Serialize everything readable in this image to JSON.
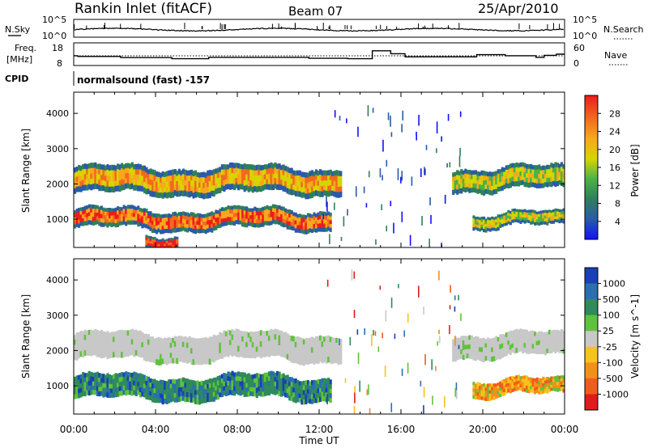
{
  "header": {
    "station": "Rankin Inlet (fitACF)",
    "beam": "Beam 07",
    "date": "25/Apr/2010"
  },
  "noise_panel": {
    "left_label": "N.Sky",
    "right_label": "N.Search",
    "left_ticks": [
      "10^5",
      "10^0"
    ],
    "right_ticks": [
      "10^5",
      "10^0"
    ]
  },
  "freq_panel": {
    "left_label": "Freq.",
    "left_unit": "[MHz]",
    "right_label": "Nave",
    "left_ticks": [
      "18",
      "8"
    ],
    "right_ticks": [
      "60",
      "0"
    ],
    "freq_steps": [
      {
        "t": 0.0,
        "f": 12.3
      },
      {
        "t": 0.2,
        "f": 12.0
      },
      {
        "t": 2.3,
        "f": 11.5
      },
      {
        "t": 4.8,
        "f": 11.0
      },
      {
        "t": 6.6,
        "f": 11.6
      },
      {
        "t": 9.4,
        "f": 11.6
      },
      {
        "t": 11.5,
        "f": 11.2
      },
      {
        "t": 13.4,
        "f": 11.0
      },
      {
        "t": 14.6,
        "f": 14.5
      },
      {
        "t": 15.5,
        "f": 13.2
      },
      {
        "t": 16.2,
        "f": 11.8
      },
      {
        "t": 19.7,
        "f": 12.8
      },
      {
        "t": 21.1,
        "f": 12.3
      },
      {
        "t": 22.6,
        "f": 11.6
      },
      {
        "t": 23.0,
        "f": 12.5
      },
      {
        "t": 23.6,
        "f": 13.0
      },
      {
        "t": 24.0,
        "f": 13.0
      }
    ]
  },
  "cpid": {
    "label": "CPID",
    "value": "normalsound (fast) -157"
  },
  "chart_data": [
    {
      "type": "heatmap",
      "name": "",
      "xlabel": "Time UT",
      "ylabel": "Slant Range [km]",
      "xlim": [
        0,
        24
      ],
      "ylim": [
        200,
        4600
      ],
      "x_ticks": [
        "00:00",
        "04:00",
        "08:00",
        "12:00",
        "16:00",
        "20:00",
        "00:00"
      ],
      "y_ticks": [
        1000,
        2000,
        3000,
        4000
      ],
      "colorbar": {
        "label": "Power [dB]",
        "ticks": [
          "4",
          "8",
          "12",
          "16",
          "20",
          "24",
          "28"
        ],
        "colors": [
          "#1010ff",
          "#2a5aa8",
          "#2f7f5c",
          "#4bb347",
          "#d7d400",
          "#f7a81b",
          "#f26b1d",
          "#ee1c1c"
        ]
      },
      "bands": [
        {
          "range_km": [
            1700,
            2500
          ],
          "t": [
            0.0,
            13.0
          ],
          "level": 5
        },
        {
          "range_km": [
            700,
            1300
          ],
          "t": [
            0.0,
            12.5
          ],
          "level": 6
        },
        {
          "range_km": [
            1800,
            2500
          ],
          "t": [
            18.5,
            24.0
          ],
          "level": 4
        },
        {
          "range_km": [
            750,
            1200
          ],
          "t": [
            19.5,
            24.0
          ],
          "level": 4
        },
        {
          "range_km": [
            200,
            600
          ],
          "t": [
            3.5,
            5.0
          ],
          "level": 7
        }
      ]
    },
    {
      "type": "heatmap",
      "name": "",
      "xlabel": "Time UT",
      "ylabel": "Slant Range [km]",
      "xlim": [
        0,
        24
      ],
      "ylim": [
        200,
        4600
      ],
      "x_ticks": [
        "00:00",
        "04:00",
        "08:00",
        "12:00",
        "16:00",
        "20:00",
        "00:00"
      ],
      "y_ticks": [
        1000,
        2000,
        3000,
        4000
      ],
      "colorbar": {
        "label": "Velocity [m s^-1]",
        "ticks": [
          "1000",
          "500",
          "100",
          "25",
          "-25",
          "-100",
          "-500",
          "-1000"
        ],
        "colors": [
          "#1a3fb8",
          "#2a6fb0",
          "#2f8a5c",
          "#5fc23c",
          "#c8c8c8",
          "#f7c21b",
          "#f39019",
          "#ee5d1b",
          "#e01b1b"
        ]
      },
      "bands": [
        {
          "range_km": [
            1700,
            2500
          ],
          "t": [
            0.0,
            13.0
          ],
          "class": "ground"
        },
        {
          "range_km": [
            600,
            1300
          ],
          "t": [
            0.0,
            12.5
          ],
          "class": "positive"
        },
        {
          "range_km": [
            1800,
            2500
          ],
          "t": [
            18.5,
            24.0
          ],
          "class": "ground"
        },
        {
          "range_km": [
            700,
            1200
          ],
          "t": [
            19.5,
            24.0
          ],
          "class": "negative"
        }
      ]
    }
  ]
}
